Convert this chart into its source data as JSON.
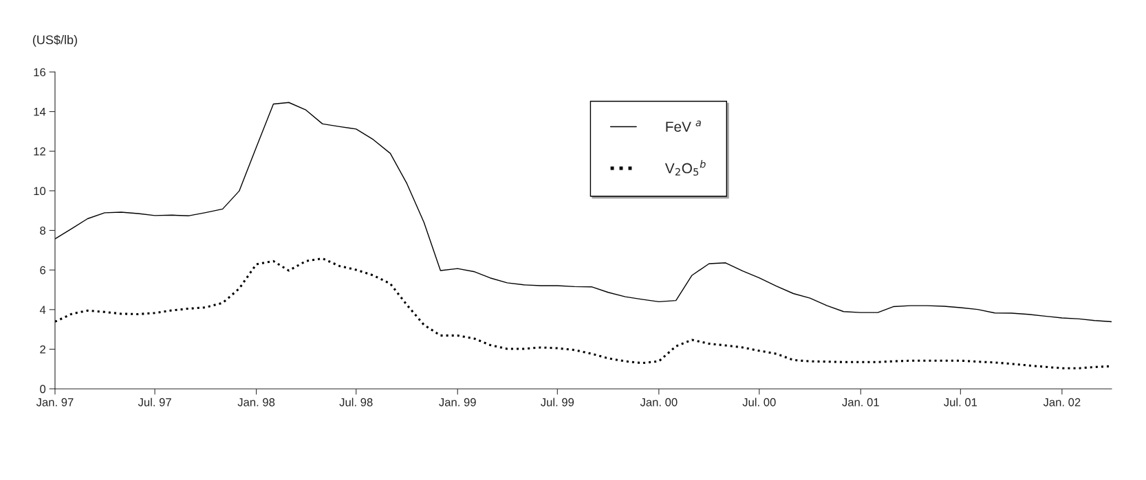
{
  "chart_data": {
    "type": "line",
    "ylabel": "(US$/lb)",
    "x": [
      "1997-01",
      "1997-02",
      "1997-03",
      "1997-04",
      "1997-05",
      "1997-06",
      "1997-07",
      "1997-08",
      "1997-09",
      "1997-10",
      "1997-11",
      "1997-12",
      "1998-01",
      "1998-02",
      "1998-03",
      "1998-04",
      "1998-05",
      "1998-06",
      "1998-07",
      "1998-08",
      "1998-09",
      "1998-10",
      "1998-11",
      "1998-12",
      "1999-01",
      "1999-02",
      "1999-03",
      "1999-04",
      "1999-05",
      "1999-06",
      "1999-07",
      "1999-08",
      "1999-09",
      "1999-10",
      "1999-11",
      "1999-12",
      "2000-01",
      "2000-02",
      "2000-03",
      "2000-04",
      "2000-05",
      "2000-06",
      "2000-07",
      "2000-08",
      "2000-09",
      "2000-10",
      "2000-11",
      "2000-12",
      "2001-01",
      "2001-02",
      "2001-03",
      "2001-04",
      "2001-05",
      "2001-06",
      "2001-07",
      "2001-08",
      "2001-09",
      "2001-10",
      "2001-11",
      "2001-12",
      "2002-01",
      "2002-02",
      "2002-03",
      "2002-04"
    ],
    "series": [
      {
        "name": "FeV $^{a}$",
        "color": "#000000",
        "line_style": "solid",
        "values": [
          7.57,
          8.1,
          8.59,
          8.89,
          8.92,
          8.85,
          8.75,
          8.77,
          8.74,
          8.9,
          9.08,
          9.99,
          12.2,
          14.38,
          14.46,
          14.08,
          13.38,
          13.24,
          13.12,
          12.59,
          11.89,
          10.37,
          8.41,
          5.97,
          6.07,
          5.91,
          5.6,
          5.35,
          5.25,
          5.21,
          5.21,
          5.16,
          5.15,
          4.87,
          4.65,
          4.52,
          4.4,
          4.46,
          5.73,
          6.32,
          6.36,
          5.95,
          5.6,
          5.19,
          4.81,
          4.58,
          4.2,
          3.9,
          3.85,
          3.85,
          4.15,
          4.2,
          4.2,
          4.17,
          4.1,
          4.01,
          3.83,
          3.82,
          3.76,
          3.67,
          3.58,
          3.53,
          3.45,
          3.39
        ]
      },
      {
        "name": "V$_{2}$O$_{5}$$^{b}$",
        "color": "#000000",
        "line_style": "dotted",
        "values": [
          3.39,
          3.79,
          3.95,
          3.88,
          3.79,
          3.77,
          3.83,
          3.96,
          4.05,
          4.11,
          4.34,
          5.06,
          6.29,
          6.45,
          5.97,
          6.45,
          6.58,
          6.2,
          6.01,
          5.73,
          5.31,
          4.24,
          3.23,
          2.69,
          2.69,
          2.53,
          2.21,
          2.02,
          2.02,
          2.09,
          2.05,
          1.96,
          1.77,
          1.54,
          1.39,
          1.3,
          1.39,
          2.15,
          2.47,
          2.28,
          2.19,
          2.09,
          1.92,
          1.77,
          1.45,
          1.39,
          1.37,
          1.35,
          1.35,
          1.35,
          1.39,
          1.42,
          1.42,
          1.42,
          1.42,
          1.37,
          1.33,
          1.26,
          1.18,
          1.11,
          1.04,
          1.04,
          1.1,
          1.14
        ]
      }
    ],
    "xlim": [
      "1997-01",
      "2002-04"
    ],
    "xticks": [
      {
        "value": "1997-01",
        "label": "Jan. 97"
      },
      {
        "value": "1997-07",
        "label": "Jul. 97"
      },
      {
        "value": "1998-01",
        "label": "Jan. 98"
      },
      {
        "value": "1998-07",
        "label": "Jul. 98"
      },
      {
        "value": "1999-01",
        "label": "Jan. 99"
      },
      {
        "value": "1999-07",
        "label": "Jul. 99"
      },
      {
        "value": "2000-01",
        "label": "Jan. 00"
      },
      {
        "value": "2000-07",
        "label": "Jul. 00"
      },
      {
        "value": "2001-01",
        "label": "Jan. 01"
      },
      {
        "value": "2001-07",
        "label": "Jul. 01"
      },
      {
        "value": "2002-01",
        "label": "Jan. 02"
      }
    ],
    "ylim": [
      0,
      16
    ],
    "yticks": [
      0,
      2,
      4,
      6,
      8,
      10,
      12,
      14,
      16
    ],
    "grid": false,
    "legend": "top",
    "marker": "none"
  }
}
